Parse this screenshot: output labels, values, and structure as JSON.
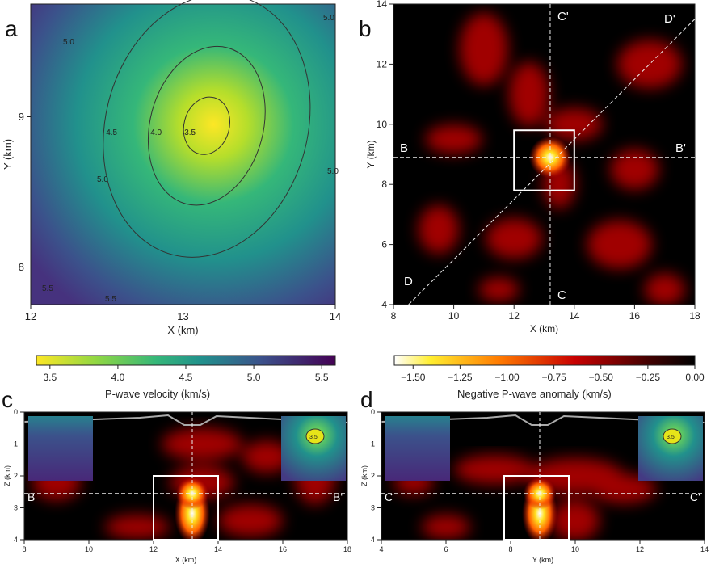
{
  "chart_data": [
    {
      "panel": "a",
      "type": "heatmap",
      "xlabel": "X (km)",
      "ylabel": "Y (km)",
      "xlim": [
        12,
        14
      ],
      "ylim": [
        7.75,
        9.75
      ],
      "xticks": [
        12,
        13,
        14
      ],
      "yticks": [
        8,
        9
      ],
      "colormap": "viridis_r",
      "low_velocity_center": [
        13.2,
        8.9
      ],
      "contour_labels": [
        "3.5",
        "4.0",
        "4.5",
        "5.0",
        "5.0",
        "5.0",
        "5.0",
        "5.5",
        "5.5"
      ],
      "colorbar": {
        "label": "P-wave velocity (km/s)",
        "range": [
          3.4,
          5.6
        ],
        "ticks": [
          "3.5",
          "4.0",
          "4.5",
          "5.0",
          "5.5"
        ]
      }
    },
    {
      "panel": "b",
      "type": "heatmap",
      "xlabel": "X (km)",
      "ylabel": "Y (km)",
      "xlim": [
        8,
        18
      ],
      "ylim": [
        4,
        14
      ],
      "xticks": [
        8,
        10,
        12,
        14,
        16,
        18
      ],
      "yticks": [
        4,
        6,
        8,
        10,
        12,
        14
      ],
      "colormap": "hot",
      "anomaly_peak": [
        13.2,
        8.9
      ],
      "box": {
        "x": [
          12,
          14
        ],
        "y": [
          7.8,
          9.8
        ]
      },
      "profiles": [
        {
          "start": "B",
          "end": "B'"
        },
        {
          "start": "C",
          "end": "C'"
        },
        {
          "start": "D",
          "end": "D'"
        }
      ],
      "colorbar": {
        "label": "Negative P-wave anomaly (km/s)",
        "range": [
          -1.6,
          0
        ],
        "ticks": [
          "−1.50",
          "−1.25",
          "−1.00",
          "−0.75",
          "−0.50",
          "−0.25",
          "0.00"
        ]
      }
    },
    {
      "panel": "c",
      "type": "heatmap",
      "xlabel": "X (km)",
      "ylabel": "Z (km)",
      "xlim": [
        8,
        18
      ],
      "ylim": [
        4,
        0
      ],
      "xticks": [
        8,
        10,
        12,
        14,
        16,
        18
      ],
      "yticks": [
        0,
        1,
        2,
        3,
        4
      ],
      "profile": {
        "start": "B",
        "end": "B'"
      },
      "anomaly_peak": [
        13.2,
        2.55
      ],
      "box": {
        "x": [
          12,
          14
        ],
        "z": [
          2,
          4
        ]
      }
    },
    {
      "panel": "d",
      "type": "heatmap",
      "xlabel": "Y (km)",
      "ylabel": "Z (km)",
      "xlim": [
        4,
        14
      ],
      "ylim": [
        4,
        0
      ],
      "xticks": [
        4,
        6,
        8,
        10,
        12,
        14
      ],
      "yticks": [
        0,
        1,
        2,
        3,
        4
      ],
      "profile": {
        "start": "C",
        "end": "C'"
      },
      "anomaly_peak": [
        8.9,
        2.55
      ],
      "box": {
        "x": [
          7.8,
          9.8
        ],
        "z": [
          2,
          4
        ]
      }
    }
  ],
  "colors": {
    "viridis_low": "#fde725",
    "viridis_high": "#440154",
    "hot_low": "#ffffff",
    "hot_high": "#000000"
  }
}
